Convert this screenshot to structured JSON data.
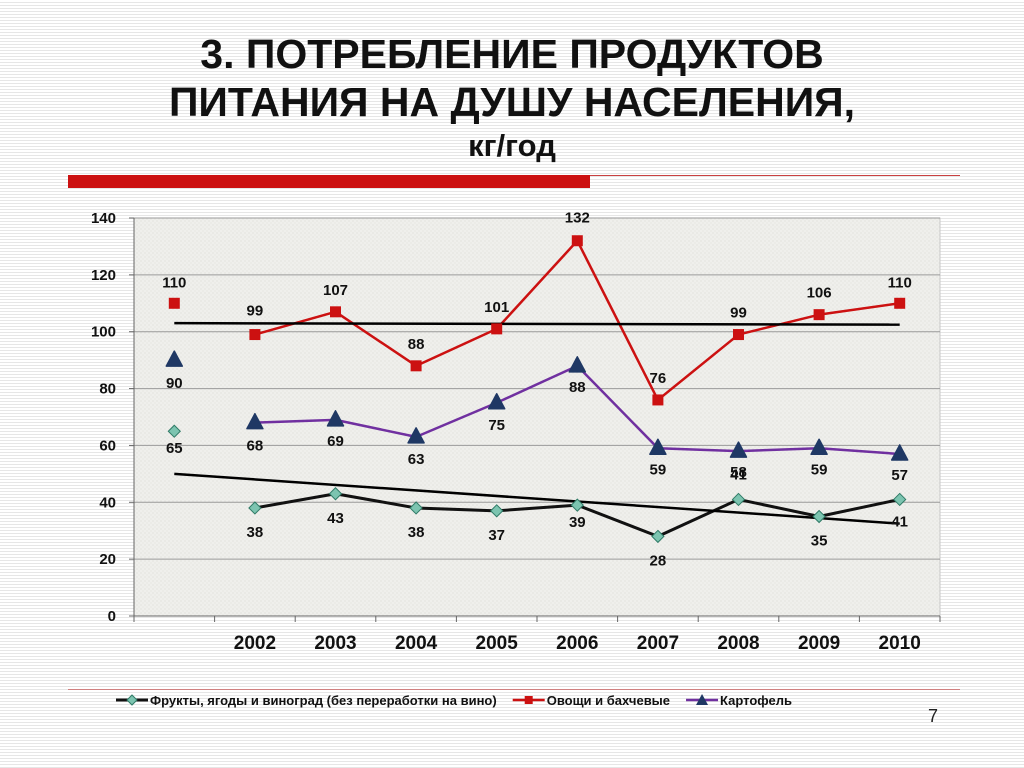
{
  "slide": {
    "title_line1": "3. ПОТРЕБЛЕНИЕ ПРОДУКТОВ",
    "title_line2": "ПИТАНИЯ НА ДУШУ НАСЕЛЕНИЯ,",
    "title_unit": "кг/год",
    "page_number": "7"
  },
  "colors": {
    "accent_red": "#cc1111",
    "fruits": "#111111",
    "fruits_marker": "#7cc4b0",
    "vegetables": "#cc1111",
    "potatoes": "#7030a0",
    "potatoes_marker": "#1f3864",
    "trend": "#000000"
  },
  "chart_data": {
    "type": "line",
    "categories": [
      "",
      "2002",
      "2003",
      "2004",
      "2005",
      "2006",
      "2007",
      "2008",
      "2009",
      "2010"
    ],
    "ylim": [
      0,
      140
    ],
    "yticks": [
      0,
      20,
      40,
      60,
      80,
      100,
      120,
      140
    ],
    "grid": true,
    "legend_position": "bottom",
    "series": [
      {
        "name": "Фрукты, ягоды и виноград (без переработки на вино)",
        "values": [
          65,
          38,
          43,
          38,
          37,
          39,
          28,
          41,
          35,
          41
        ],
        "labels": [
          "65",
          "38",
          "43",
          "38",
          "37",
          "39",
          "28",
          "41",
          "35",
          "41"
        ],
        "line_from_index": 1,
        "marker": "diamond"
      },
      {
        "name": "Овощи и бахчевые",
        "values": [
          110,
          99,
          107,
          88,
          101,
          132,
          76,
          99,
          106,
          110
        ],
        "labels": [
          "110",
          "99",
          "107",
          "88",
          "101",
          "132",
          "76",
          "99",
          "106",
          "110"
        ],
        "line_from_index": 1,
        "marker": "square"
      },
      {
        "name": "Картофель",
        "values": [
          90,
          68,
          69,
          63,
          75,
          88,
          59,
          58,
          59,
          57
        ],
        "labels": [
          "90",
          "68",
          "69",
          "63",
          "75",
          "88",
          "59",
          "58",
          "59",
          "57"
        ],
        "line_from_index": 1,
        "marker": "triangle"
      }
    ],
    "trendlines": [
      {
        "series": "Овощи и бахчевые",
        "start": 103,
        "end": 102.5
      },
      {
        "series": "Фрукты, ягоды и виноград (без переработки на вино)",
        "start": 50,
        "end": 32.5
      }
    ]
  }
}
